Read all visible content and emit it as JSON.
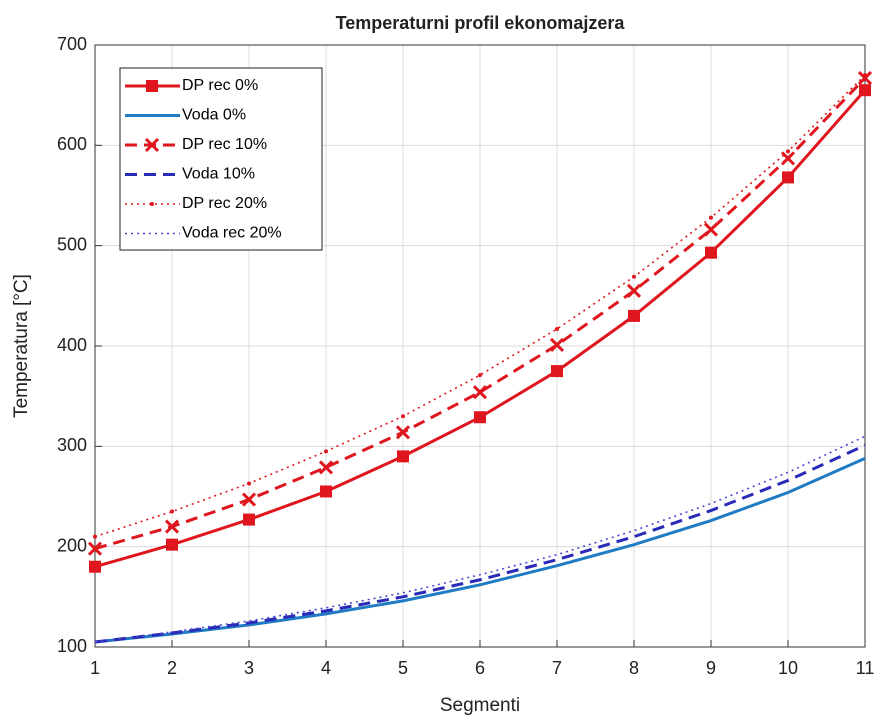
{
  "chart_data": {
    "type": "line",
    "title": "Temperaturni profil ekonomajzera",
    "xlabel": "Segmenti",
    "ylabel": "Temperatura [°C]",
    "x": [
      1,
      2,
      3,
      4,
      5,
      6,
      7,
      8,
      9,
      10,
      11
    ],
    "xlim": [
      1,
      11
    ],
    "xticks": [
      1,
      2,
      3,
      4,
      5,
      6,
      7,
      8,
      9,
      10,
      11
    ],
    "ylim": [
      100,
      700
    ],
    "yticks": [
      100,
      200,
      300,
      400,
      500,
      600,
      700
    ],
    "grid": true,
    "legend": "upper left",
    "series": [
      {
        "name": "DP rec 0%",
        "color": "#e0161e",
        "dash": "solid",
        "marker": "square",
        "values": [
          180,
          202,
          227,
          255,
          290,
          329,
          375,
          430,
          493,
          568,
          655
        ]
      },
      {
        "name": "Voda 0%",
        "color": "#1f7cc4",
        "dash": "solid",
        "marker": "none",
        "values": [
          105,
          113,
          122,
          133,
          146,
          162,
          181,
          202,
          226,
          254,
          288
        ]
      },
      {
        "name": "DP rec 10%",
        "color": "#e0161e",
        "dash": "dashed",
        "marker": "x",
        "values": [
          198,
          220,
          247,
          279,
          314,
          354,
          401,
          455,
          516,
          587,
          667
        ]
      },
      {
        "name": "Voda 10%",
        "color": "#2a2ab8",
        "dash": "dashed",
        "marker": "none",
        "values": [
          105,
          114,
          124,
          136,
          150,
          167,
          187,
          210,
          236,
          266,
          301
        ]
      },
      {
        "name": "DP rec 20%",
        "color": "#e0161e",
        "dash": "dotted",
        "marker": "dot",
        "values": [
          210,
          235,
          263,
          295,
          330,
          371,
          417,
          469,
          528,
          594,
          670
        ]
      },
      {
        "name": "Voda rec 20%",
        "color": "#4a4ad0",
        "dash": "dotted",
        "marker": "none",
        "values": [
          105,
          115,
          126,
          139,
          154,
          172,
          192,
          216,
          243,
          274,
          310
        ]
      }
    ]
  }
}
